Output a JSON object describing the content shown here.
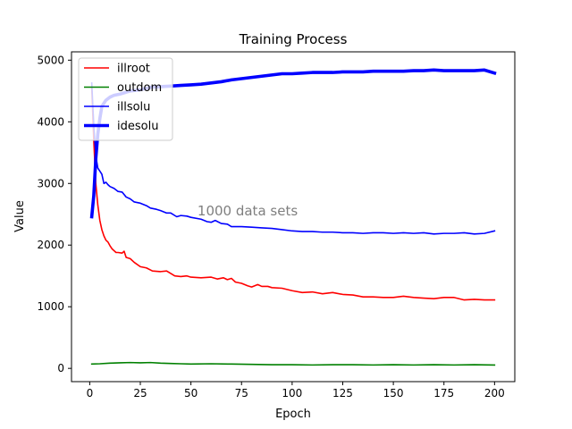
{
  "chart_data": {
    "type": "line",
    "title": "Training Process",
    "xlabel": "Epoch",
    "ylabel": "Value",
    "xlim": [
      -9,
      210
    ],
    "ylim": [
      -215,
      5135
    ],
    "xticks": [
      0,
      25,
      50,
      75,
      100,
      125,
      150,
      175,
      200
    ],
    "yticks": [
      0,
      1000,
      2000,
      3000,
      4000,
      5000
    ],
    "annotation": {
      "text": "1000 data sets",
      "x": 78,
      "y": 2480
    },
    "legend_position": "top-left",
    "grid": false,
    "series": [
      {
        "name": "illroot",
        "color": "#ff0000",
        "linewidth": "thin",
        "points": [
          [
            1,
            4550
          ],
          [
            2,
            3700
          ],
          [
            3,
            3000
          ],
          [
            4,
            2650
          ],
          [
            5,
            2400
          ],
          [
            6,
            2250
          ],
          [
            7,
            2150
          ],
          [
            8,
            2080
          ],
          [
            9,
            2050
          ],
          [
            10,
            1990
          ],
          [
            11,
            1940
          ],
          [
            13,
            1880
          ],
          [
            14,
            1880
          ],
          [
            16,
            1870
          ],
          [
            17,
            1900
          ],
          [
            18,
            1800
          ],
          [
            20,
            1780
          ],
          [
            22,
            1720
          ],
          [
            25,
            1650
          ],
          [
            28,
            1630
          ],
          [
            31,
            1580
          ],
          [
            35,
            1570
          ],
          [
            38,
            1580
          ],
          [
            40,
            1540
          ],
          [
            42,
            1500
          ],
          [
            45,
            1490
          ],
          [
            48,
            1500
          ],
          [
            50,
            1480
          ],
          [
            55,
            1470
          ],
          [
            60,
            1480
          ],
          [
            63,
            1450
          ],
          [
            66,
            1470
          ],
          [
            68,
            1440
          ],
          [
            70,
            1460
          ],
          [
            72,
            1400
          ],
          [
            75,
            1380
          ],
          [
            78,
            1340
          ],
          [
            80,
            1320
          ],
          [
            83,
            1360
          ],
          [
            85,
            1330
          ],
          [
            88,
            1330
          ],
          [
            90,
            1310
          ],
          [
            95,
            1300
          ],
          [
            100,
            1260
          ],
          [
            105,
            1230
          ],
          [
            110,
            1240
          ],
          [
            115,
            1210
          ],
          [
            120,
            1230
          ],
          [
            125,
            1200
          ],
          [
            130,
            1190
          ],
          [
            135,
            1160
          ],
          [
            140,
            1160
          ],
          [
            145,
            1150
          ],
          [
            150,
            1150
          ],
          [
            155,
            1170
          ],
          [
            160,
            1150
          ],
          [
            165,
            1140
          ],
          [
            170,
            1130
          ],
          [
            175,
            1150
          ],
          [
            180,
            1150
          ],
          [
            185,
            1110
          ],
          [
            190,
            1120
          ],
          [
            195,
            1110
          ],
          [
            200,
            1110
          ]
        ]
      },
      {
        "name": "outdom",
        "color": "#008000",
        "linewidth": "thin",
        "points": [
          [
            1,
            70
          ],
          [
            5,
            75
          ],
          [
            10,
            85
          ],
          [
            15,
            90
          ],
          [
            20,
            95
          ],
          [
            25,
            90
          ],
          [
            30,
            95
          ],
          [
            35,
            85
          ],
          [
            40,
            80
          ],
          [
            45,
            75
          ],
          [
            50,
            70
          ],
          [
            60,
            75
          ],
          [
            70,
            70
          ],
          [
            80,
            65
          ],
          [
            90,
            60
          ],
          [
            100,
            60
          ],
          [
            110,
            55
          ],
          [
            120,
            60
          ],
          [
            130,
            60
          ],
          [
            140,
            55
          ],
          [
            150,
            60
          ],
          [
            160,
            55
          ],
          [
            170,
            60
          ],
          [
            180,
            55
          ],
          [
            190,
            60
          ],
          [
            200,
            55
          ]
        ]
      },
      {
        "name": "illsolu",
        "color": "#0000ff",
        "linewidth": "thin",
        "points": [
          [
            1,
            4630
          ],
          [
            2,
            3950
          ],
          [
            3,
            3450
          ],
          [
            4,
            3250
          ],
          [
            5,
            3200
          ],
          [
            6,
            3150
          ],
          [
            7,
            3000
          ],
          [
            8,
            3020
          ],
          [
            9,
            2980
          ],
          [
            10,
            2950
          ],
          [
            12,
            2920
          ],
          [
            14,
            2870
          ],
          [
            16,
            2860
          ],
          [
            18,
            2780
          ],
          [
            20,
            2750
          ],
          [
            22,
            2700
          ],
          [
            25,
            2680
          ],
          [
            28,
            2640
          ],
          [
            30,
            2600
          ],
          [
            33,
            2580
          ],
          [
            35,
            2560
          ],
          [
            38,
            2520
          ],
          [
            40,
            2520
          ],
          [
            43,
            2460
          ],
          [
            45,
            2480
          ],
          [
            48,
            2470
          ],
          [
            50,
            2450
          ],
          [
            55,
            2420
          ],
          [
            58,
            2380
          ],
          [
            60,
            2370
          ],
          [
            62,
            2400
          ],
          [
            65,
            2350
          ],
          [
            68,
            2340
          ],
          [
            70,
            2300
          ],
          [
            75,
            2300
          ],
          [
            80,
            2290
          ],
          [
            85,
            2280
          ],
          [
            90,
            2270
          ],
          [
            95,
            2250
          ],
          [
            100,
            2230
          ],
          [
            105,
            2220
          ],
          [
            110,
            2220
          ],
          [
            115,
            2210
          ],
          [
            120,
            2210
          ],
          [
            125,
            2200
          ],
          [
            130,
            2200
          ],
          [
            135,
            2190
          ],
          [
            140,
            2200
          ],
          [
            145,
            2200
          ],
          [
            150,
            2190
          ],
          [
            155,
            2200
          ],
          [
            160,
            2190
          ],
          [
            165,
            2200
          ],
          [
            170,
            2180
          ],
          [
            175,
            2190
          ],
          [
            180,
            2190
          ],
          [
            185,
            2200
          ],
          [
            190,
            2180
          ],
          [
            195,
            2190
          ],
          [
            200,
            2230
          ]
        ]
      },
      {
        "name": "idesolu",
        "color": "#0000ff",
        "linewidth": "thick",
        "points": [
          [
            1,
            2460
          ],
          [
            2,
            2800
          ],
          [
            3,
            3400
          ],
          [
            4,
            3800
          ],
          [
            5,
            4050
          ],
          [
            6,
            4250
          ],
          [
            8,
            4350
          ],
          [
            10,
            4400
          ],
          [
            12,
            4430
          ],
          [
            15,
            4450
          ],
          [
            18,
            4480
          ],
          [
            20,
            4500
          ],
          [
            25,
            4520
          ],
          [
            30,
            4560
          ],
          [
            35,
            4570
          ],
          [
            40,
            4580
          ],
          [
            45,
            4590
          ],
          [
            50,
            4600
          ],
          [
            55,
            4610
          ],
          [
            60,
            4630
          ],
          [
            65,
            4650
          ],
          [
            70,
            4680
          ],
          [
            75,
            4700
          ],
          [
            80,
            4720
          ],
          [
            85,
            4740
          ],
          [
            90,
            4760
          ],
          [
            95,
            4780
          ],
          [
            100,
            4780
          ],
          [
            105,
            4790
          ],
          [
            110,
            4800
          ],
          [
            115,
            4800
          ],
          [
            120,
            4800
          ],
          [
            125,
            4810
          ],
          [
            130,
            4810
          ],
          [
            135,
            4810
          ],
          [
            140,
            4820
          ],
          [
            145,
            4820
          ],
          [
            150,
            4820
          ],
          [
            155,
            4820
          ],
          [
            160,
            4830
          ],
          [
            165,
            4830
          ],
          [
            170,
            4840
          ],
          [
            175,
            4830
          ],
          [
            180,
            4830
          ],
          [
            185,
            4830
          ],
          [
            190,
            4830
          ],
          [
            195,
            4840
          ],
          [
            200,
            4790
          ]
        ]
      }
    ]
  }
}
